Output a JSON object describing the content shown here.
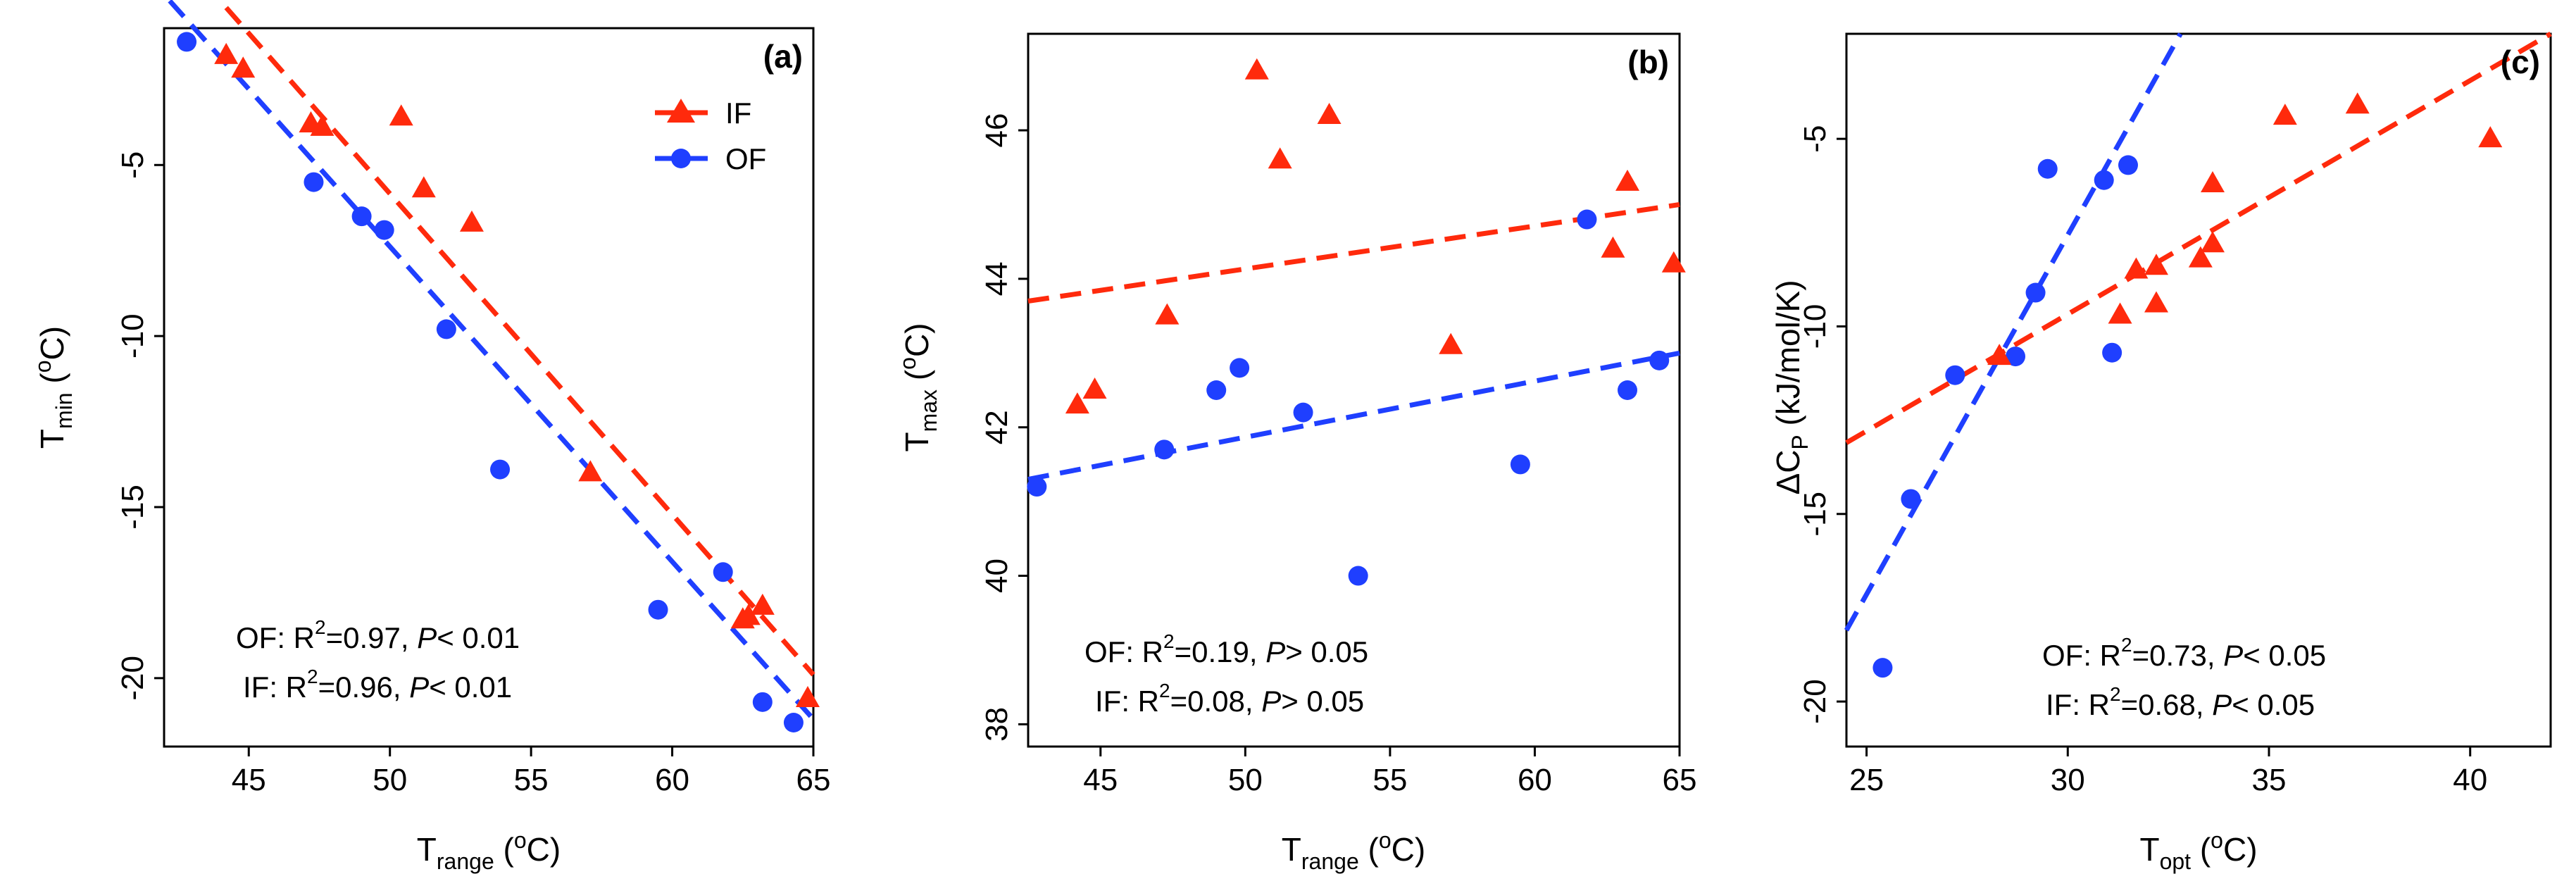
{
  "colors": {
    "IF": "#ff2a0c",
    "OF": "#1f3fff",
    "axis": "#000000"
  },
  "chart_data": [
    {
      "panel": "a",
      "type": "scatter",
      "panel_label": "(a)",
      "xlabel": {
        "main": "T",
        "sub": "range",
        "unit_sup": "o",
        "unit_main": "C"
      },
      "ylabel": {
        "main": "T",
        "sub": "min",
        "unit_sup": "o",
        "unit_main": "C"
      },
      "xlim": [
        42,
        65
      ],
      "ylim": [
        -22.0,
        -1.0
      ],
      "xticks": [
        45,
        50,
        55,
        60,
        65
      ],
      "xtick_labels": [
        "45",
        "50",
        "55",
        "60",
        "65"
      ],
      "yticks": [
        -5,
        -10,
        -15,
        -20
      ],
      "ytick_labels": [
        "-5",
        "-10",
        "-15",
        "-20"
      ],
      "legend": {
        "placement": "top-right",
        "entries": [
          {
            "series": "IF",
            "label": "IF",
            "marker": "triangle"
          },
          {
            "series": "OF",
            "label": "OF",
            "marker": "circle"
          }
        ]
      },
      "series": [
        {
          "name": "IF",
          "marker": "triangle",
          "points": [
            [
              44.2,
              -1.8
            ],
            [
              44.8,
              -2.2
            ],
            [
              47.2,
              -3.8
            ],
            [
              47.6,
              -3.9
            ],
            [
              50.4,
              -3.6
            ],
            [
              51.2,
              -5.7
            ],
            [
              52.9,
              -6.7
            ],
            [
              57.1,
              -14.0
            ],
            [
              62.5,
              -18.3
            ],
            [
              62.7,
              -18.2
            ],
            [
              63.2,
              -17.9
            ],
            [
              64.8,
              -20.6
            ]
          ],
          "fit": {
            "x": [
              44.2,
              65.0
            ],
            "y": [
              -0.4,
              -19.9
            ]
          }
        },
        {
          "name": "OF",
          "marker": "circle",
          "points": [
            [
              42.8,
              -1.4
            ],
            [
              47.3,
              -5.5
            ],
            [
              49.0,
              -6.5
            ],
            [
              49.8,
              -6.9
            ],
            [
              52.0,
              -9.8
            ],
            [
              53.9,
              -13.9
            ],
            [
              59.5,
              -18.0
            ],
            [
              61.8,
              -16.9
            ],
            [
              63.2,
              -20.7
            ],
            [
              64.3,
              -21.3
            ]
          ],
          "fit": {
            "x": [
              42.2,
              65.0
            ],
            "y": [
              -0.2,
              -21.2
            ]
          }
        }
      ],
      "annotations": [
        {
          "prefix": "OF: R",
          "sup": "2",
          "stat": "=0.97, ",
          "p": "P",
          "rest": "< 0.01"
        },
        {
          "prefix": "IF: R",
          "sup": "2",
          "stat": "=0.96, ",
          "p": "P",
          "rest": "< 0.01"
        }
      ]
    },
    {
      "panel": "b",
      "type": "scatter",
      "panel_label": "(b)",
      "xlabel": {
        "main": "T",
        "sub": "range",
        "unit_sup": "o",
        "unit_main": "C"
      },
      "ylabel": {
        "main": "T",
        "sub": "max",
        "unit_sup": "o",
        "unit_main": "C"
      },
      "xlim": [
        42.5,
        65
      ],
      "ylim": [
        37.7,
        47.3
      ],
      "xticks": [
        45,
        50,
        55,
        60,
        65
      ],
      "xtick_labels": [
        "45",
        "50",
        "55",
        "60",
        "65"
      ],
      "yticks": [
        38,
        40,
        42,
        44,
        46
      ],
      "ytick_labels": [
        "38",
        "40",
        "42",
        "44",
        "46"
      ],
      "series": [
        {
          "name": "IF",
          "marker": "triangle",
          "points": [
            [
              44.2,
              42.3
            ],
            [
              44.8,
              42.5
            ],
            [
              47.3,
              43.5
            ],
            [
              50.4,
              46.8
            ],
            [
              51.2,
              45.6
            ],
            [
              52.9,
              46.2
            ],
            [
              57.1,
              43.1
            ],
            [
              62.7,
              44.4
            ],
            [
              63.2,
              45.3
            ],
            [
              64.8,
              44.2
            ]
          ],
          "fit": {
            "x": [
              42.5,
              65.0
            ],
            "y": [
              43.7,
              45.0
            ]
          }
        },
        {
          "name": "OF",
          "marker": "circle",
          "points": [
            [
              42.8,
              41.2
            ],
            [
              47.2,
              41.7
            ],
            [
              49.0,
              42.5
            ],
            [
              49.8,
              42.8
            ],
            [
              52.0,
              42.2
            ],
            [
              53.9,
              40.0
            ],
            [
              59.5,
              41.5
            ],
            [
              61.8,
              44.8
            ],
            [
              63.2,
              42.5
            ],
            [
              64.3,
              42.9
            ]
          ],
          "fit": {
            "x": [
              42.5,
              65.0
            ],
            "y": [
              41.3,
              43.0
            ]
          }
        }
      ],
      "annotations": [
        {
          "prefix": "OF: R",
          "sup": "2",
          "stat": "=0.19, ",
          "p": "P",
          "rest": "> 0.05"
        },
        {
          "prefix": "IF: R",
          "sup": "2",
          "stat": "=0.08, ",
          "p": "P",
          "rest": "> 0.05"
        }
      ]
    },
    {
      "panel": "c",
      "type": "scatter",
      "panel_label": "(c)",
      "xlabel": {
        "main": "T",
        "sub": "opt",
        "unit_sup": "o",
        "unit_main": "C"
      },
      "ylabel": {
        "delta": "ΔC",
        "sub": "P",
        "rest": " (kJ/mol/K)"
      },
      "xlim": [
        24.5,
        42
      ],
      "ylim": [
        -21.2,
        -2.2
      ],
      "xticks": [
        25,
        30,
        35,
        40
      ],
      "xtick_labels": [
        "25",
        "30",
        "35",
        "40"
      ],
      "yticks": [
        -5,
        -10,
        -15,
        -20
      ],
      "ytick_labels": [
        "-5",
        "-10",
        "-15",
        "-20"
      ],
      "series": [
        {
          "name": "IF",
          "marker": "triangle",
          "points": [
            [
              28.3,
              -10.8
            ],
            [
              31.3,
              -9.7
            ],
            [
              31.7,
              -8.5
            ],
            [
              32.2,
              -8.4
            ],
            [
              32.2,
              -9.4
            ],
            [
              33.3,
              -8.2
            ],
            [
              33.6,
              -7.8
            ],
            [
              33.6,
              -6.2
            ],
            [
              35.4,
              -4.4
            ],
            [
              37.2,
              -4.1
            ],
            [
              40.5,
              -5.0
            ]
          ],
          "fit": {
            "x": [
              24.5,
              42.0
            ],
            "y": [
              -13.1,
              -2.2
            ]
          }
        },
        {
          "name": "OF",
          "marker": "circle",
          "points": [
            [
              25.4,
              -19.1
            ],
            [
              26.1,
              -14.6
            ],
            [
              27.2,
              -11.3
            ],
            [
              28.7,
              -10.8
            ],
            [
              29.2,
              -9.1
            ],
            [
              29.5,
              -5.8
            ],
            [
              30.9,
              -6.1
            ],
            [
              31.1,
              -10.7
            ],
            [
              31.5,
              -5.7
            ]
          ],
          "fit": {
            "x": [
              24.5,
              32.8
            ],
            "y": [
              -18.1,
              -2.2
            ]
          }
        }
      ],
      "annotations": [
        {
          "prefix": "OF: R",
          "sup": "2",
          "stat": "=0.73, ",
          "p": "P",
          "rest": "< 0.05"
        },
        {
          "prefix": "IF: R",
          "sup": "2",
          "stat": "=0.68, ",
          "p": "P",
          "rest": "< 0.05"
        }
      ]
    }
  ]
}
